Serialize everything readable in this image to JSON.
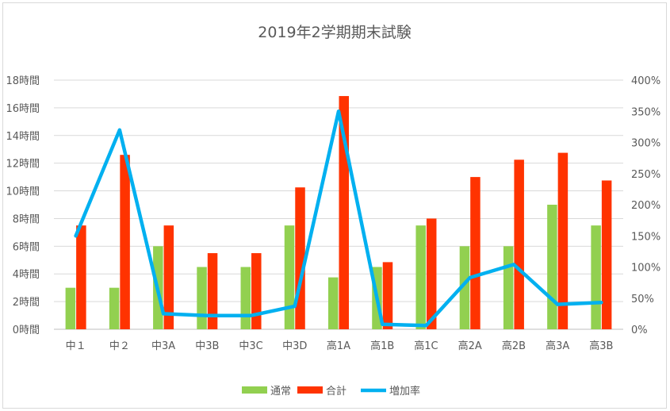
{
  "chart_data": {
    "type": "bar",
    "title": "2019年2学期期末試験",
    "categories": [
      "中１",
      "中２",
      "中3A",
      "中3B",
      "中3C",
      "中3D",
      "高1A",
      "高1B",
      "高1C",
      "高2A",
      "高2B",
      "高3A",
      "高3B"
    ],
    "y_tick_labels": [
      "0時間",
      "2時間",
      "4時間",
      "6時間",
      "8時間",
      "10時間",
      "12時間",
      "14時間",
      "16時間",
      "18時間"
    ],
    "y2_tick_labels": [
      "0%",
      "50%",
      "100%",
      "150%",
      "200%",
      "250%",
      "300%",
      "350%",
      "400%"
    ],
    "ylim": [
      0,
      18
    ],
    "y2lim": [
      0,
      400
    ],
    "grid": true,
    "legend_position": "bottom",
    "series": [
      {
        "name": "通常",
        "kind": "bar",
        "axis": "left",
        "color": "#92d050",
        "values": [
          3,
          3,
          6,
          4.5,
          4.5,
          7.5,
          3.75,
          4.5,
          7.5,
          6,
          6,
          9,
          7.5
        ]
      },
      {
        "name": "合計",
        "kind": "bar",
        "axis": "left",
        "color": "#ff3300",
        "values": [
          7.5,
          12.6,
          7.5,
          5.5,
          5.5,
          10.25,
          16.85,
          4.85,
          8,
          11,
          12.25,
          12.75,
          10.75
        ]
      },
      {
        "name": "増加率",
        "kind": "line",
        "axis": "right",
        "color": "#00b0f0",
        "values": [
          150,
          320,
          25,
          22,
          22,
          37,
          350,
          8,
          6,
          83,
          104,
          40,
          43
        ]
      }
    ]
  }
}
